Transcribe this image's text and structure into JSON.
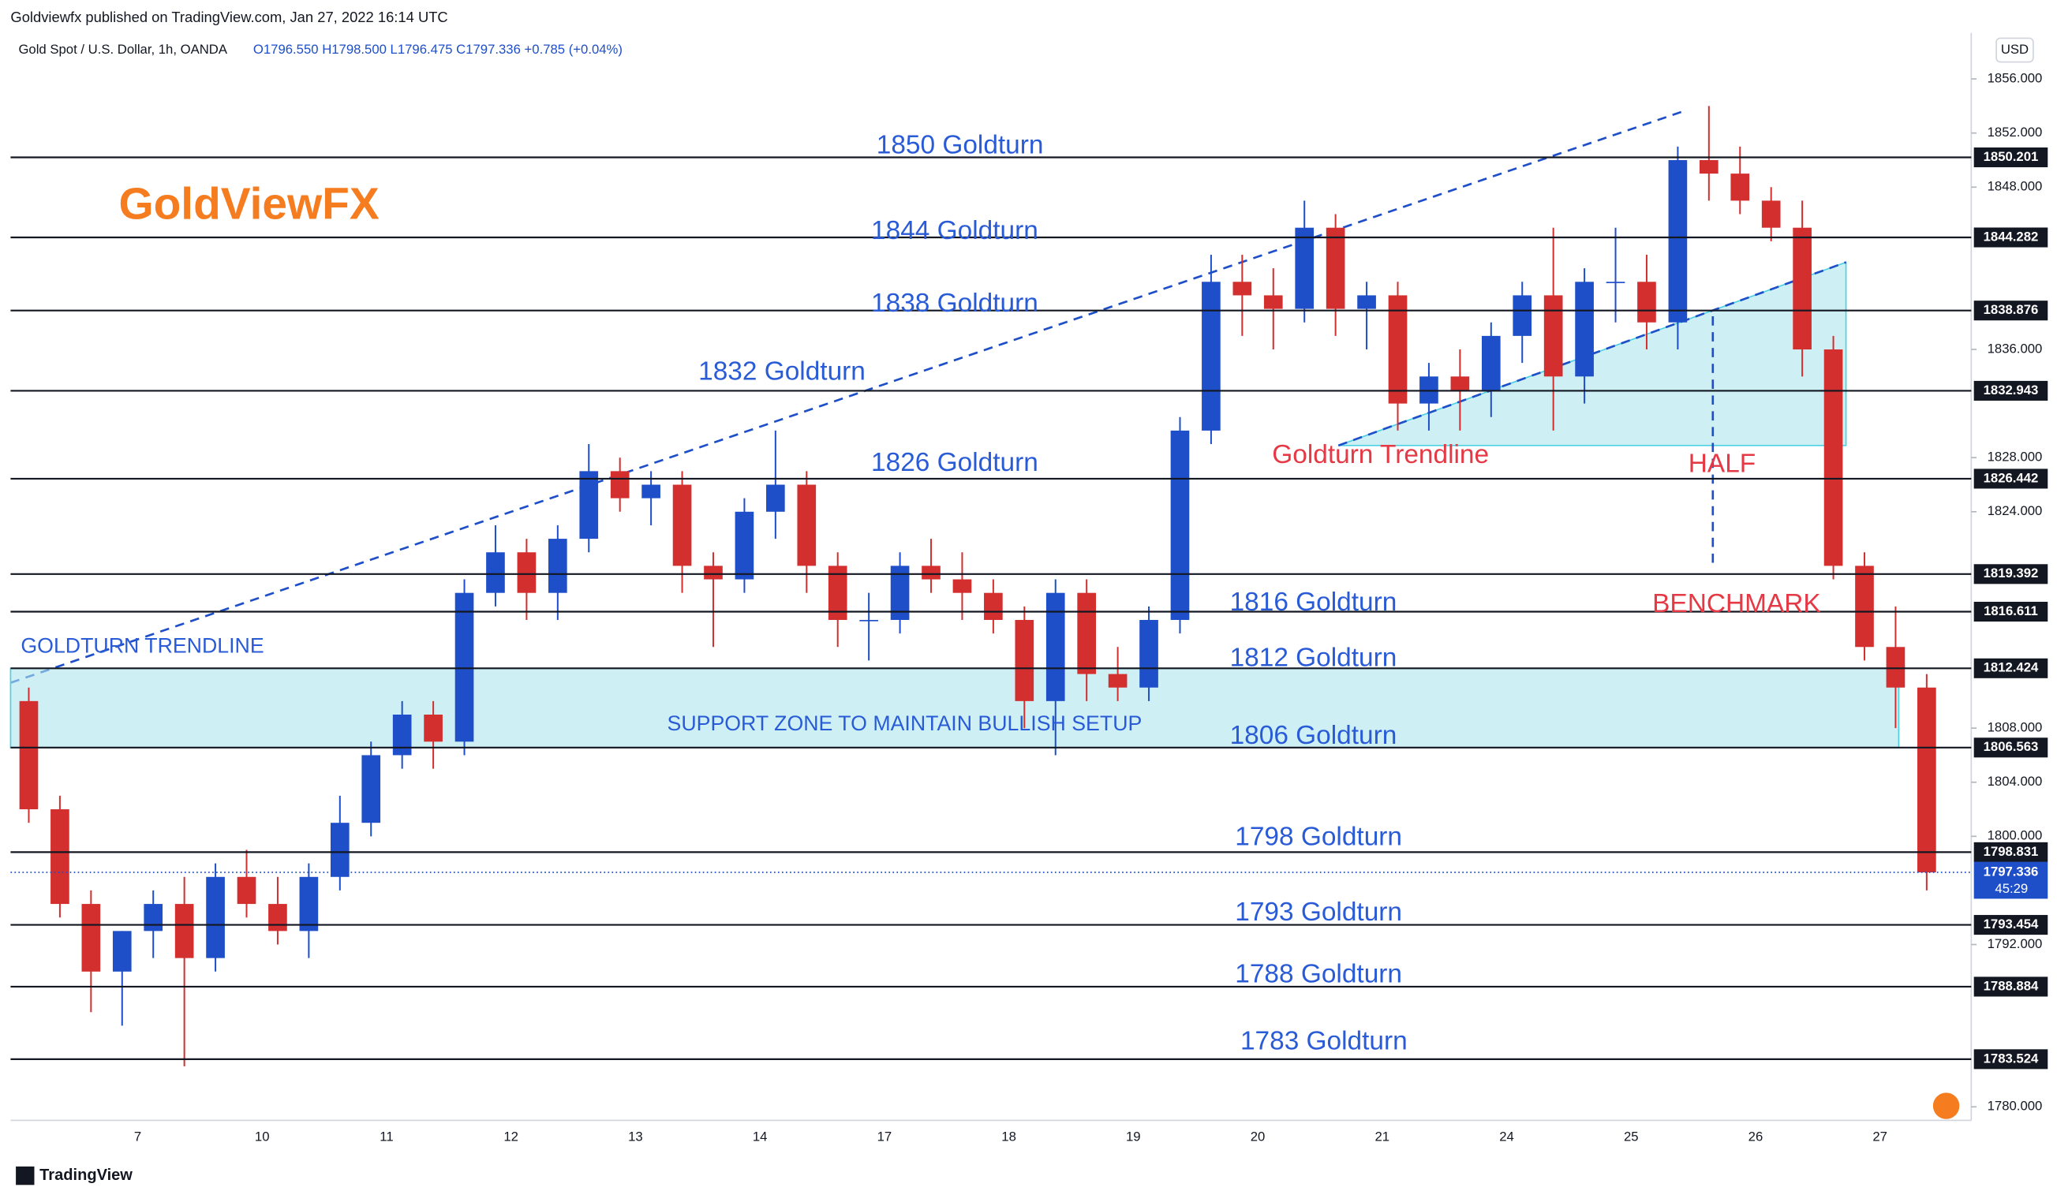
{
  "header": {
    "published": "Goldviewfx published on TradingView.com, Jan 27, 2022 16:14 UTC",
    "brand": "TradingView"
  },
  "chart_data": {
    "type": "candlestick",
    "title": "Gold Spot / U.S. Dollar, 1h, OANDA",
    "ohlc_text": "O1796.550 H1798.500 L1796.475 C1797.336 +0.785 (+0.04%)",
    "currency": "USD",
    "watermark": "GoldViewFX",
    "up_color": "#1e4fc9",
    "down_color": "#d32f2f",
    "categories": [
      null,
      null,
      null,
      "7",
      null,
      null,
      null,
      "10",
      null,
      null,
      null,
      "11",
      null,
      null,
      null,
      "12",
      null,
      null,
      null,
      "13",
      null,
      null,
      null,
      "14",
      null,
      null,
      null,
      "17",
      null,
      null,
      null,
      "18",
      null,
      null,
      null,
      "19",
      null,
      null,
      null,
      "20",
      null,
      null,
      null,
      "21",
      null,
      null,
      null,
      "24",
      null,
      null,
      null,
      "25",
      null,
      null,
      null,
      "26",
      null,
      null,
      null,
      "27",
      null,
      null
    ],
    "open": [
      1810,
      1802,
      1795,
      1790,
      1793,
      1795,
      1791,
      1797,
      1795,
      1793,
      1797,
      1801,
      1806,
      1809,
      1807,
      1818,
      1821,
      1818,
      1822,
      1827,
      1825,
      1826,
      1820,
      1819,
      1824,
      1826,
      1820,
      1816,
      1816,
      1820,
      1819,
      1818,
      1816,
      1810,
      1818,
      1812,
      1811,
      1816,
      1830,
      1841,
      1840,
      1839,
      1845,
      1839,
      1840,
      1832,
      1834,
      1833,
      1837,
      1840,
      1834,
      1841,
      1841,
      1838,
      1850,
      1849,
      1847,
      1845,
      1836,
      1820,
      1814,
      1811
    ],
    "high": [
      1811,
      1803,
      1796,
      1793,
      1796,
      1797,
      1798,
      1799,
      1797,
      1798,
      1803,
      1807,
      1810,
      1810,
      1819,
      1823,
      1822,
      1823,
      1829,
      1828,
      1827,
      1827,
      1821,
      1825,
      1830,
      1827,
      1821,
      1818,
      1821,
      1822,
      1821,
      1819,
      1817,
      1819,
      1819,
      1814,
      1817,
      1831,
      1843,
      1843,
      1842,
      1847,
      1846,
      1841,
      1841,
      1835,
      1836,
      1838,
      1841,
      1845,
      1842,
      1845,
      1843,
      1851,
      1854,
      1851,
      1848,
      1847,
      1837,
      1821,
      1817,
      1812
    ],
    "low": [
      1801,
      1794,
      1787,
      1786,
      1791,
      1783,
      1790,
      1794,
      1792,
      1791,
      1796,
      1800,
      1805,
      1805,
      1806,
      1817,
      1816,
      1816,
      1821,
      1824,
      1823,
      1818,
      1814,
      1818,
      1822,
      1818,
      1814,
      1813,
      1815,
      1818,
      1816,
      1815,
      1808,
      1806,
      1810,
      1810,
      1810,
      1815,
      1829,
      1837,
      1836,
      1838,
      1837,
      1836,
      1830,
      1830,
      1830,
      1831,
      1835,
      1830,
      1832,
      1838,
      1836,
      1836,
      1847,
      1846,
      1844,
      1834,
      1819,
      1813,
      1808,
      1796
    ],
    "close": [
      1802,
      1795,
      1790,
      1793,
      1795,
      1791,
      1797,
      1795,
      1793,
      1797,
      1801,
      1806,
      1809,
      1807,
      1818,
      1821,
      1818,
      1822,
      1827,
      1825,
      1826,
      1820,
      1819,
      1824,
      1826,
      1820,
      1816,
      1816,
      1820,
      1819,
      1818,
      1816,
      1810,
      1818,
      1812,
      1811,
      1816,
      1830,
      1841,
      1840,
      1839,
      1845,
      1839,
      1840,
      1832,
      1834,
      1833,
      1837,
      1840,
      1834,
      1841,
      1841,
      1838,
      1850,
      1849,
      1847,
      1845,
      1836,
      1820,
      1814,
      1811,
      1797.336
    ],
    "ylim": [
      1779,
      1859.4
    ],
    "yticks": [
      {
        "value": 1780,
        "label": "1780.000"
      },
      {
        "value": 1792,
        "label": "1792.000"
      },
      {
        "value": 1800,
        "label": "1800.000"
      },
      {
        "value": 1804,
        "label": "1804.000"
      },
      {
        "value": 1808,
        "label": "1808.000"
      },
      {
        "value": 1824,
        "label": "1824.000"
      },
      {
        "value": 1828,
        "label": "1828.000"
      },
      {
        "value": 1836,
        "label": "1836.000"
      },
      {
        "value": 1848,
        "label": "1848.000"
      },
      {
        "value": 1852,
        "label": "1852.000"
      },
      {
        "value": 1856,
        "label": "1856.000"
      }
    ],
    "levels": [
      1850.201,
      1844.282,
      1838.876,
      1832.943,
      1826.442,
      1819.392,
      1816.611,
      1812.424,
      1806.563,
      1798.831,
      1793.454,
      1788.884,
      1783.524
    ],
    "last_price": 1797.336,
    "countdown": "45:29",
    "annotations": [
      "1850 Goldturn",
      "1844 Goldturn",
      "1838 Goldturn",
      "1832 Goldturn",
      "1826 Goldturn",
      "1816 Goldturn",
      "1812 Goldturn",
      "1806 Goldturn",
      "1798 Goldturn",
      "1793 Goldturn",
      "1788 Goldturn",
      "1783 Goldturn",
      "Goldturn Trendline",
      "HALF",
      "BENCHMARK",
      "GOLDTURN TRENDLINE",
      "SUPPORT ZONE TO MAINTAIN BULLISH SETUP"
    ]
  }
}
